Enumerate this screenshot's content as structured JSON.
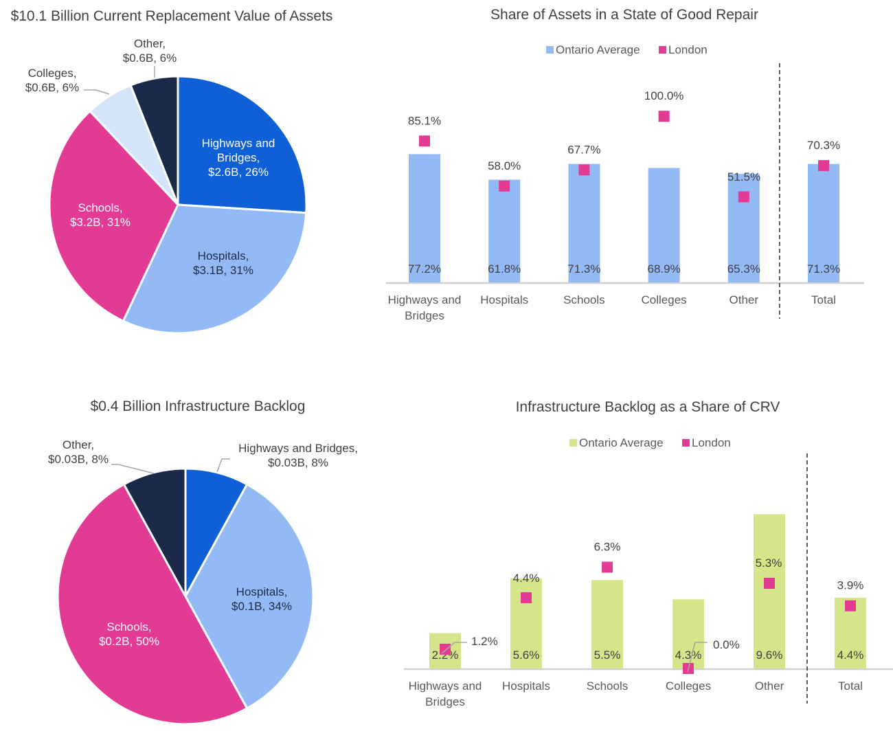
{
  "colors": {
    "highways": "#0f5fd6",
    "hospitals": "#93baf5",
    "schools": "#e33a94",
    "colleges": "#d4e4fb",
    "other": "#1b2a48",
    "ontario_blue": "#93baf5",
    "ontario_green": "#d4e58a",
    "london": "#e33a94",
    "axis": "#d0d0d0",
    "leader": "#a6a6a6"
  },
  "chart_data": [
    {
      "id": "crv-pie",
      "type": "pie",
      "title": "$10.1 Billion Current Replacement Value of Assets",
      "slices": [
        {
          "name": "Highways and Bridges",
          "value_b": 2.6,
          "percent": 26,
          "label_lines": [
            "Highways and",
            "Bridges,",
            "$2.6B, 26%"
          ]
        },
        {
          "name": "Hospitals",
          "value_b": 3.1,
          "percent": 31,
          "label_lines": [
            "Hospitals,",
            "$3.1B, 31%"
          ]
        },
        {
          "name": "Schools",
          "value_b": 3.2,
          "percent": 31,
          "label_lines": [
            "Schools,",
            "$3.2B, 31%"
          ]
        },
        {
          "name": "Colleges",
          "value_b": 0.6,
          "percent": 6,
          "label_lines": [
            "Colleges,",
            "$0.6B, 6%"
          ]
        },
        {
          "name": "Other",
          "value_b": 0.6,
          "percent": 6,
          "label_lines": [
            "Other,",
            "$0.6B, 6%"
          ]
        }
      ]
    },
    {
      "id": "sogr-bar",
      "type": "bar",
      "title": "Share of Assets in a State of Good Repair",
      "legend": [
        "Ontario Average",
        "London"
      ],
      "legend_position": "top",
      "categories": [
        "Highways and Bridges",
        "Hospitals",
        "Schools",
        "Colleges",
        "Other",
        "Total"
      ],
      "category_lines": [
        [
          "Highways and",
          "Bridges"
        ],
        [
          "Hospitals"
        ],
        [
          "Schools"
        ],
        [
          "Colleges"
        ],
        [
          "Other"
        ],
        [
          "Total"
        ]
      ],
      "series": [
        {
          "name": "Ontario Average",
          "kind": "bar",
          "values": [
            77.2,
            61.8,
            71.3,
            68.9,
            65.3,
            71.3
          ],
          "labels": [
            "77.2%",
            "61.8%",
            "71.3%",
            "68.9%",
            "65.3%",
            "71.3%"
          ]
        },
        {
          "name": "London",
          "kind": "marker",
          "values": [
            85.1,
            58.0,
            67.7,
            100.0,
            51.5,
            70.3
          ],
          "labels": [
            "85.1%",
            "58.0%",
            "67.7%",
            "100.0%",
            "51.5%",
            "70.3%"
          ]
        }
      ],
      "ylim": [
        0,
        170
      ],
      "separator_before": "Total"
    },
    {
      "id": "backlog-pie",
      "type": "pie",
      "title": "$0.4 Billion Infrastructure Backlog",
      "slices": [
        {
          "name": "Highways and Bridges",
          "value_b": 0.03,
          "percent": 8,
          "label_lines": [
            "Highways and Bridges,",
            "$0.03B, 8%"
          ]
        },
        {
          "name": "Hospitals",
          "value_b": 0.1,
          "percent": 34,
          "label_lines": [
            "Hospitals,",
            "$0.1B, 34%"
          ]
        },
        {
          "name": "Schools",
          "value_b": 0.2,
          "percent": 50,
          "label_lines": [
            "Schools,",
            "$0.2B, 50%"
          ]
        },
        {
          "name": "Other",
          "value_b": 0.03,
          "percent": 8,
          "label_lines": [
            "Other,",
            "$0.03B, 8%"
          ]
        }
      ]
    },
    {
      "id": "backlog-bar",
      "type": "bar",
      "title": "Infrastructure Backlog as a Share of CRV",
      "legend": [
        "Ontario Average",
        "London"
      ],
      "legend_position": "top",
      "categories": [
        "Highways and Bridges",
        "Hospitals",
        "Schools",
        "Colleges",
        "Other",
        "Total"
      ],
      "category_lines": [
        [
          "Highways and",
          "Bridges"
        ],
        [
          "Hospitals"
        ],
        [
          "Schools"
        ],
        [
          "Colleges"
        ],
        [
          "Other"
        ],
        [
          "Total"
        ]
      ],
      "series": [
        {
          "name": "Ontario Average",
          "kind": "bar",
          "values": [
            2.2,
            5.6,
            5.5,
            4.3,
            9.6,
            4.4
          ],
          "labels": [
            "2.2%",
            "5.6%",
            "5.5%",
            "4.3%",
            "9.6%",
            "4.4%"
          ]
        },
        {
          "name": "London",
          "kind": "marker",
          "values": [
            1.2,
            4.4,
            6.3,
            0.0,
            5.3,
            3.9
          ],
          "labels": [
            "1.2%",
            "4.4%",
            "6.3%",
            "0.0%",
            "5.3%",
            "3.9%"
          ]
        }
      ],
      "ylim": [
        0,
        10
      ],
      "separator_before": "Total"
    }
  ]
}
